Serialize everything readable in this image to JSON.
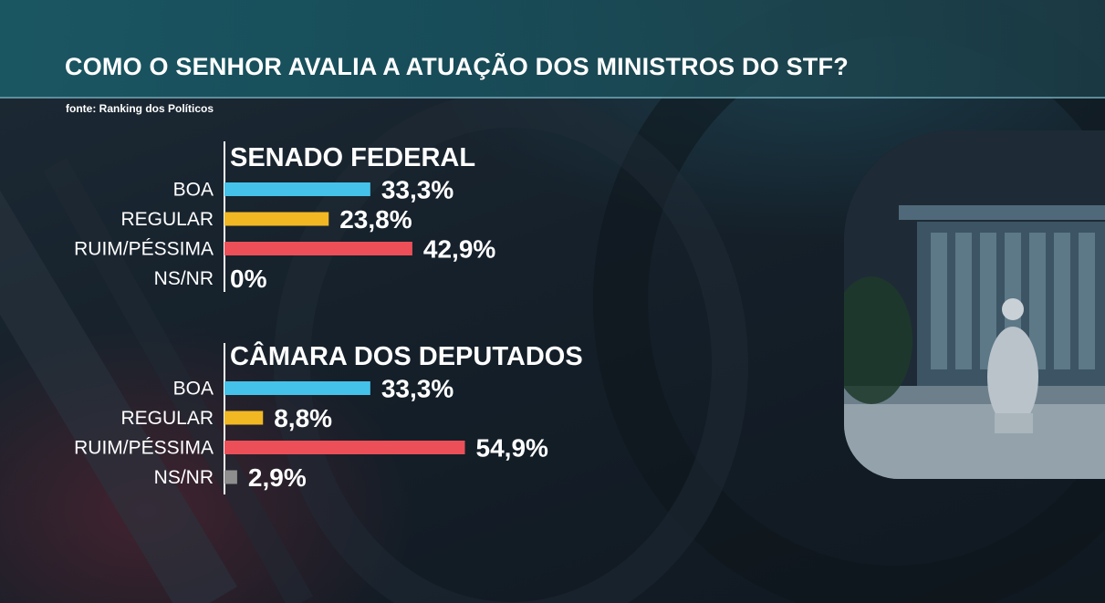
{
  "header": {
    "title": "COMO O SENHOR AVALIA A ATUAÇÃO DOS MINISTROS DO STF?",
    "source": "fonte: Ranking dos Políticos"
  },
  "colors": {
    "BOA": "#45c2ea",
    "REGULAR": "#f2b823",
    "RUIM/PÉSSIMA": "#ec4f58",
    "NS/NR": "#8e8e8e"
  },
  "chart_data": [
    {
      "type": "bar",
      "orientation": "horizontal",
      "title": "SENADO FEDERAL",
      "categories": [
        "BOA",
        "REGULAR",
        "RUIM/PÉSSIMA",
        "NS/NR"
      ],
      "values": [
        33.3,
        23.8,
        42.9,
        0
      ],
      "value_labels": [
        "33,3%",
        "23,8%",
        "42,9%",
        "0%"
      ],
      "unit": "%"
    },
    {
      "type": "bar",
      "orientation": "horizontal",
      "title": "CÂMARA DOS DEPUTADOS",
      "categories": [
        "BOA",
        "REGULAR",
        "RUIM/PÉSSIMA",
        "NS/NR"
      ],
      "values": [
        33.3,
        8.8,
        54.9,
        2.9
      ],
      "value_labels": [
        "33,3%",
        "8,8%",
        "54,9%",
        "2,9%"
      ],
      "unit": "%"
    }
  ]
}
